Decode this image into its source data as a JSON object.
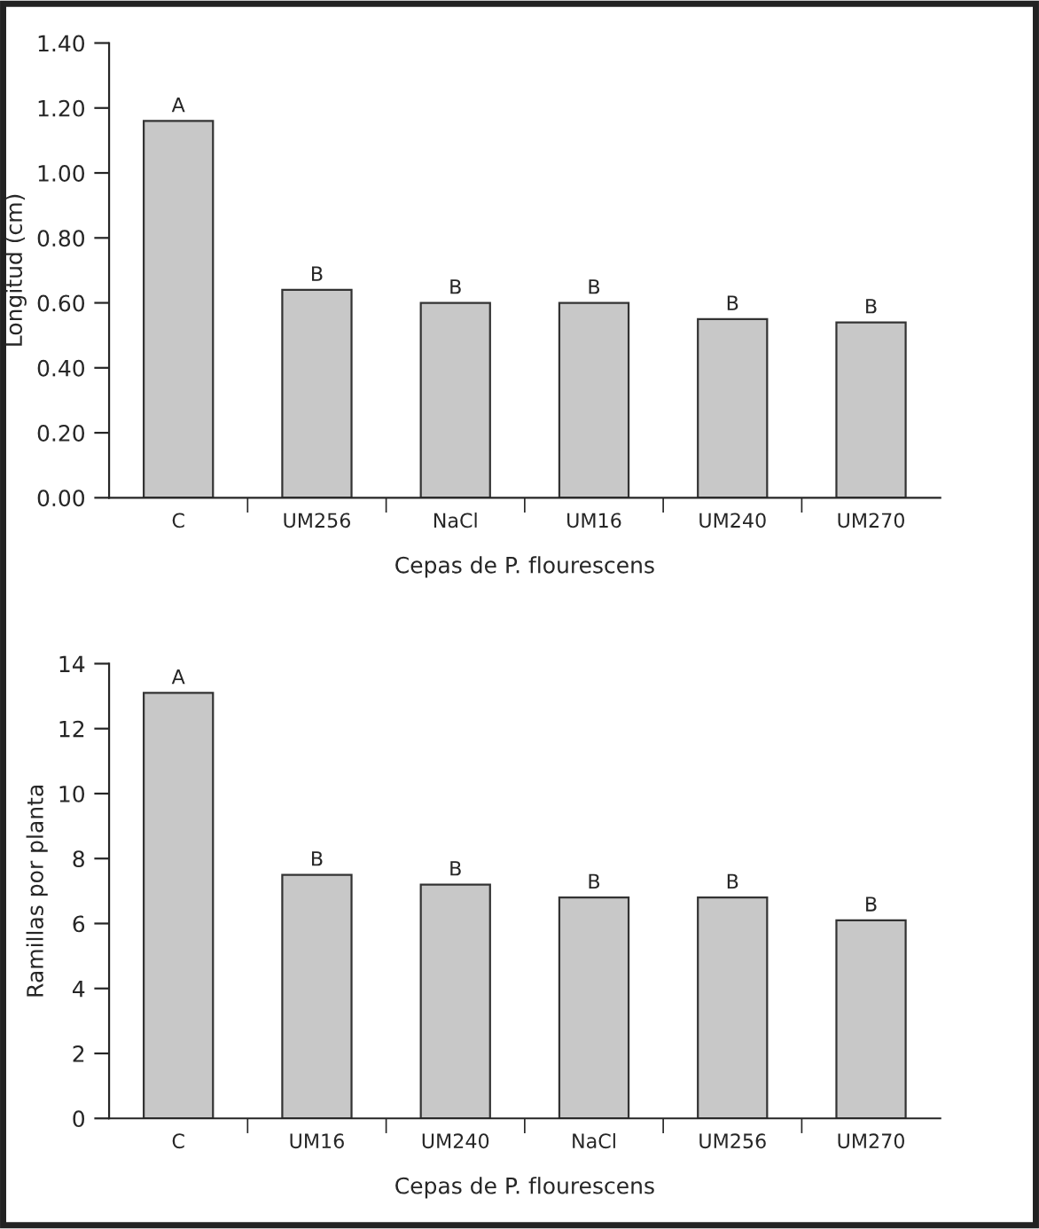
{
  "chart_data": [
    {
      "type": "bar",
      "categories": [
        "C",
        "UM256",
        "NaCl",
        "UM16",
        "UM240",
        "UM270"
      ],
      "values": [
        1.16,
        0.64,
        0.6,
        0.6,
        0.55,
        0.54
      ],
      "color": "#c8c8c8",
      "ylabel": "Longitud (cm)",
      "xlabel": "Cepas de P. flourescens",
      "ylim": [
        0,
        1.4
      ],
      "yticks": [
        {
          "value": 0,
          "label": "0.00"
        },
        {
          "value": 0.2,
          "label": "0.20"
        },
        {
          "value": 0.4,
          "label": "0.40"
        },
        {
          "value": 0.6,
          "label": "0.60"
        },
        {
          "value": 0.8,
          "label": "0.80"
        },
        {
          "value": 1.0,
          "label": "1.00"
        },
        {
          "value": 1.2,
          "label": "1.20"
        },
        {
          "value": 1.4,
          "label": "1.40"
        }
      ],
      "grid": false,
      "legend": false,
      "annotations": [
        {
          "text": "A",
          "x": "C",
          "y": 1.16
        },
        {
          "text": "B",
          "x": "UM256",
          "y": 0.64
        },
        {
          "text": "B",
          "x": "NaCl",
          "y": 0.6
        },
        {
          "text": "B",
          "x": "UM16",
          "y": 0.6
        },
        {
          "text": "B",
          "x": "UM240",
          "y": 0.55
        },
        {
          "text": "B",
          "x": "UM270",
          "y": 0.54
        }
      ]
    },
    {
      "type": "bar",
      "categories": [
        "C",
        "UM16",
        "UM240",
        "NaCl",
        "UM256",
        "UM270"
      ],
      "values": [
        13.1,
        7.5,
        7.2,
        6.8,
        6.8,
        6.1
      ],
      "color": "#c8c8c8",
      "ylabel": "Ramillas por planta",
      "xlabel": "Cepas de P. flourescens",
      "ylim": [
        0,
        14
      ],
      "yticks": [
        0,
        2,
        4,
        6,
        8,
        10,
        12,
        14
      ],
      "grid": false,
      "legend": false,
      "annotations": [
        {
          "text": "A",
          "x": "C",
          "y": 13.1
        },
        {
          "text": "B",
          "x": "UM16",
          "y": 7.5
        },
        {
          "text": "B",
          "x": "UM240",
          "y": 7.2
        },
        {
          "text": "B",
          "x": "NaCl",
          "y": 6.8
        },
        {
          "text": "B",
          "x": "UM256",
          "y": 6.8
        },
        {
          "text": "B",
          "x": "UM270",
          "y": 6.1
        }
      ]
    }
  ]
}
